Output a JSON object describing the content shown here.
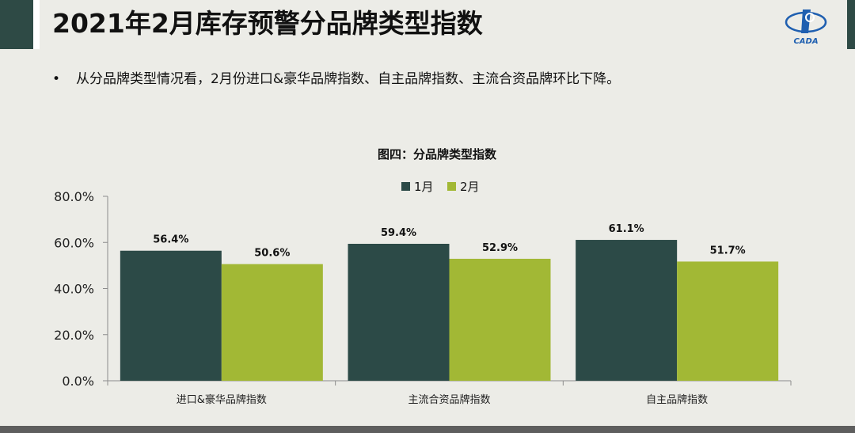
{
  "header": {
    "title": "2021年2月库存预警分品牌类型指数",
    "logo_text": "CADA"
  },
  "bullet": {
    "marker": "•",
    "text": "从分品牌类型情况看，2月份进口&豪华品牌指数、自主品牌指数、主流合资品牌环比下降。"
  },
  "chart_data": {
    "type": "bar",
    "title": "图四：分品牌类型指数",
    "categories": [
      "进口&豪华品牌指数",
      "主流合资品牌指数",
      "自主品牌指数"
    ],
    "series": [
      {
        "name": "1月",
        "values": [
          56.4,
          59.4,
          61.1
        ],
        "labels": [
          "56.4%",
          "59.4%",
          "61.1%"
        ],
        "color": "#2c4a47"
      },
      {
        "name": "2月",
        "values": [
          50.6,
          52.9,
          51.7
        ],
        "labels": [
          "50.6%",
          "52.9%",
          "51.7%"
        ],
        "color": "#a2b835"
      }
    ],
    "ylim": [
      0,
      80
    ],
    "yticks": [
      0,
      20,
      40,
      60,
      80
    ],
    "ytick_labels": [
      "0.0%",
      "20.0%",
      "40.0%",
      "60.0%",
      "80.0%"
    ],
    "legend_position": "top-center",
    "grid": false
  }
}
